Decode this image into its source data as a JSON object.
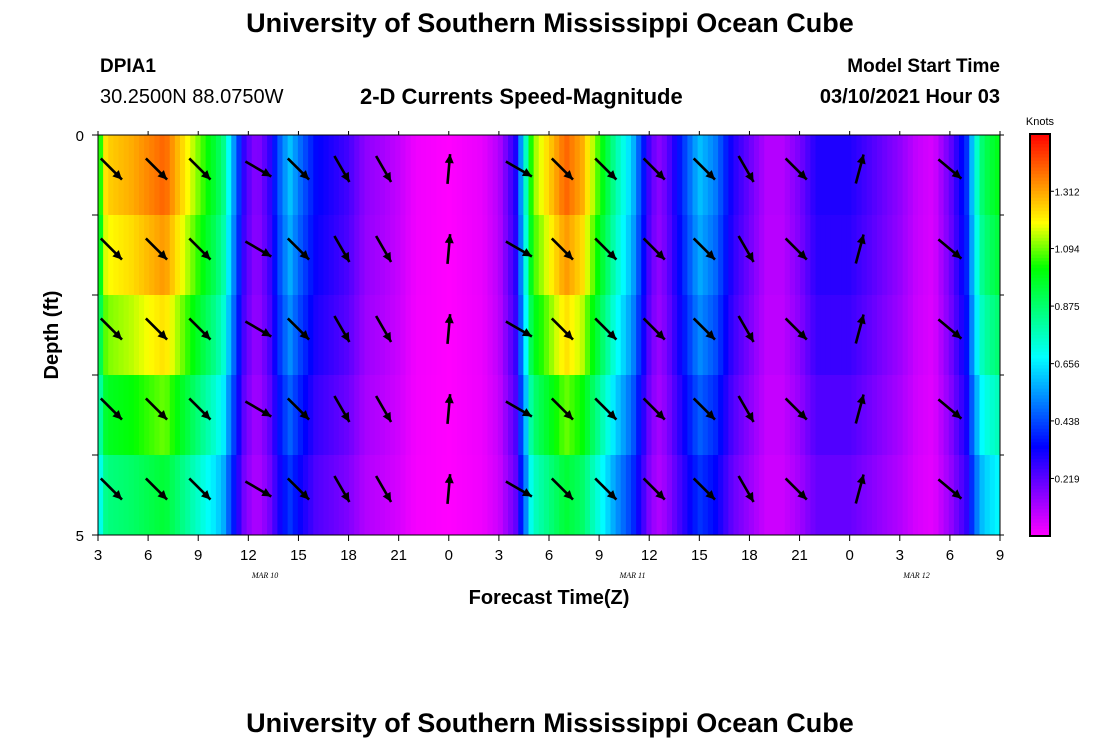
{
  "header": {
    "title": "University of Southern Mississippi Ocean Cube",
    "station_id": "DPIA1",
    "station_coords": "30.2500N 88.0750W",
    "plot_title": "2-D Currents Speed-Magnitude",
    "model_start_label": "Model Start Time",
    "model_start_value": "03/10/2021 Hour 03"
  },
  "footer": {
    "title": "University of Southern Mississippi Ocean Cube"
  },
  "chart_data": {
    "type": "heatmap",
    "title": "2-D Currents Speed-Magnitude",
    "xlabel": "Forecast Time(Z)",
    "ylabel": "Depth (ft)",
    "x_hours": [
      0,
      3,
      6,
      9,
      12,
      15,
      18,
      21,
      24,
      27,
      30,
      33,
      36,
      39,
      42,
      45,
      48,
      51,
      54
    ],
    "x_ticks": [
      "3",
      "6",
      "9",
      "12",
      "15",
      "18",
      "21",
      "0",
      "3",
      "6",
      "9",
      "12",
      "15",
      "18",
      "21",
      "0",
      "3",
      "6",
      "9"
    ],
    "x_tick_hours": [
      0,
      3,
      6,
      9,
      12,
      15,
      18,
      21,
      24,
      27,
      30,
      33,
      36,
      39,
      42,
      45,
      48,
      51,
      54
    ],
    "date_labels": [
      {
        "text": "MAR 10",
        "hour": 10
      },
      {
        "text": "MAR 11",
        "hour": 32
      },
      {
        "text": "MAR 12",
        "hour": 49
      }
    ],
    "y_tick_labels": [
      "0",
      "5"
    ],
    "ylim": [
      0,
      5
    ],
    "depth_levels": [
      0.5,
      1.5,
      2.5,
      3.5,
      4.5
    ],
    "colorbar": {
      "unit": "Knots",
      "min": 0.0,
      "max": 1.53,
      "tick_values": [
        "0.219",
        "0.438",
        "0.656",
        "0.875",
        "1.094",
        "1.312"
      ],
      "colors": [
        "#ff00ff",
        "#8000ff",
        "#0000ff",
        "#0080ff",
        "#00ffff",
        "#00ff80",
        "#00ff00",
        "#ffff00",
        "#ff8000",
        "#ff0000"
      ]
    },
    "speed_by_hour_surface": [
      [
        0,
        0.95
      ],
      [
        0.5,
        1.25
      ],
      [
        2,
        1.3
      ],
      [
        4,
        1.4
      ],
      [
        5,
        1.25
      ],
      [
        6,
        1.1
      ],
      [
        7,
        0.95
      ],
      [
        7.5,
        0.85
      ],
      [
        8,
        0.6
      ],
      [
        8.8,
        0.25
      ],
      [
        9.5,
        0.15
      ],
      [
        10.2,
        0.25
      ],
      [
        11,
        0.5
      ],
      [
        11.5,
        0.6
      ],
      [
        12,
        0.5
      ],
      [
        13,
        0.35
      ],
      [
        14,
        0.3
      ],
      [
        15,
        0.25
      ],
      [
        16,
        0.15
      ],
      [
        17,
        0.12
      ],
      [
        18,
        0.08
      ],
      [
        19,
        0.02
      ],
      [
        21,
        0.0
      ],
      [
        23,
        0.03
      ],
      [
        24,
        0.1
      ],
      [
        25,
        0.3
      ],
      [
        25.6,
        0.75
      ],
      [
        26,
        1.1
      ],
      [
        27,
        1.25
      ],
      [
        28,
        1.4
      ],
      [
        29,
        1.3
      ],
      [
        30,
        1.05
      ],
      [
        31,
        0.8
      ],
      [
        32,
        0.6
      ],
      [
        33,
        0.25
      ],
      [
        33.5,
        0.15
      ],
      [
        34,
        0.2
      ],
      [
        35,
        0.4
      ],
      [
        36,
        0.6
      ],
      [
        37,
        0.5
      ],
      [
        38,
        0.3
      ],
      [
        39,
        0.2
      ],
      [
        40,
        0.1
      ],
      [
        41,
        0.1
      ],
      [
        42,
        0.18
      ],
      [
        43,
        0.3
      ],
      [
        45,
        0.3
      ],
      [
        47,
        0.2
      ],
      [
        48,
        0.15
      ],
      [
        49,
        0.08
      ],
      [
        50,
        0.05
      ],
      [
        51,
        0.2
      ],
      [
        52,
        0.4
      ],
      [
        52.5,
        0.7
      ],
      [
        53,
        0.9
      ],
      [
        54,
        1.0
      ]
    ],
    "depth_factor": [
      1.0,
      0.95,
      0.88,
      0.78,
      0.68,
      0.55
    ],
    "arrows": {
      "hours": [
        0.8,
        3.5,
        6.1,
        9.6,
        12.0,
        14.6,
        17.1,
        21.0,
        25.2,
        27.8,
        30.4,
        33.3,
        36.3,
        38.8,
        41.8,
        45.6,
        51.0
      ],
      "angles_deg": [
        135,
        135,
        135,
        120,
        135,
        150,
        150,
        5,
        120,
        135,
        135,
        135,
        135,
        150,
        135,
        15,
        130
      ],
      "lengths": [
        [
          1.0,
          1.0,
          1.0,
          1.0,
          1.0,
          1.0,
          1.0,
          1.0,
          1.0,
          1.0,
          1.0,
          1.0,
          1.0,
          1.0,
          1.0,
          1.0,
          1.0
        ],
        [
          1.0,
          1.0,
          1.0,
          1.0,
          1.0,
          1.0,
          1.0,
          1.0,
          1.0,
          1.0,
          1.0,
          1.0,
          1.0,
          1.0,
          1.0,
          1.0,
          1.0
        ],
        [
          1.0,
          1.0,
          1.0,
          1.0,
          1.0,
          1.0,
          1.0,
          1.0,
          1.0,
          1.0,
          1.0,
          1.0,
          1.0,
          1.0,
          1.0,
          1.0,
          1.0
        ],
        [
          1.0,
          1.0,
          1.0,
          1.0,
          1.0,
          1.0,
          1.0,
          1.0,
          1.0,
          1.0,
          1.0,
          1.0,
          1.0,
          1.0,
          1.0,
          1.0,
          1.0
        ],
        [
          1.0,
          1.0,
          1.0,
          1.0,
          1.0,
          1.0,
          1.0,
          1.0,
          1.0,
          1.0,
          1.0,
          1.0,
          1.0,
          1.0,
          1.0,
          1.0,
          1.0
        ]
      ]
    }
  }
}
